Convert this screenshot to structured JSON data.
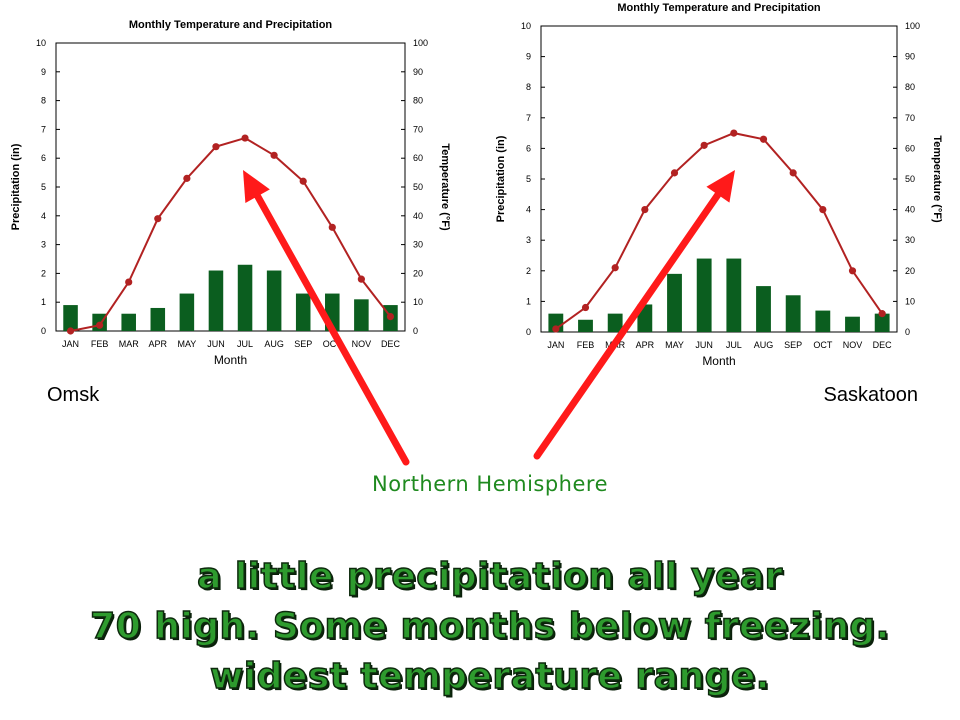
{
  "chart_data": [
    {
      "type": "bar",
      "title": "Monthly Temperature and Precipitation",
      "xlabel": "Month",
      "ylabel": "Precipitation (in)",
      "ylabel_right": "Temperature (°F)",
      "categories": [
        "JAN",
        "FEB",
        "MAR",
        "APR",
        "MAY",
        "JUN",
        "JUL",
        "AUG",
        "SEP",
        "OCT",
        "NOV",
        "DEC"
      ],
      "ylim": [
        0,
        10
      ],
      "y2lim": [
        0,
        100
      ],
      "yticks": [
        "0",
        "1",
        "2",
        "3",
        "4",
        "5",
        "6",
        "7",
        "8",
        "9",
        "10"
      ],
      "y2ticks": [
        "0",
        "10",
        "20",
        "30",
        "40",
        "50",
        "60",
        "70",
        "80",
        "90",
        "100"
      ],
      "series": [
        {
          "name": "Precipitation",
          "type": "bar",
          "axis": "left",
          "values": [
            0.9,
            0.6,
            0.6,
            0.8,
            1.3,
            2.1,
            2.3,
            2.1,
            1.3,
            1.3,
            1.1,
            0.9
          ]
        },
        {
          "name": "Temperature",
          "type": "line",
          "axis": "right",
          "values": [
            0,
            2,
            17,
            39,
            53,
            64,
            67,
            61,
            52,
            36,
            18,
            5
          ]
        }
      ],
      "colors": {
        "bars": "#0b5e1f",
        "line": "#b22222"
      },
      "grid": false
    },
    {
      "type": "bar",
      "title": "Monthly Temperature and Precipitation",
      "xlabel": "Month",
      "ylabel": "Precipitation (in)",
      "ylabel_right": "Temperature (°F)",
      "categories": [
        "JAN",
        "FEB",
        "MAR",
        "APR",
        "MAY",
        "JUN",
        "JUL",
        "AUG",
        "SEP",
        "OCT",
        "NOV",
        "DEC"
      ],
      "ylim": [
        0,
        10
      ],
      "y2lim": [
        0,
        100
      ],
      "yticks": [
        "0",
        "1",
        "2",
        "3",
        "4",
        "5",
        "6",
        "7",
        "8",
        "9",
        "10"
      ],
      "y2ticks": [
        "0",
        "10",
        "20",
        "30",
        "40",
        "50",
        "60",
        "70",
        "80",
        "90",
        "100"
      ],
      "series": [
        {
          "name": "Precipitation",
          "type": "bar",
          "axis": "left",
          "values": [
            0.6,
            0.4,
            0.6,
            0.9,
            1.9,
            2.4,
            2.4,
            1.5,
            1.2,
            0.7,
            0.5,
            0.6
          ]
        },
        {
          "name": "Temperature",
          "type": "line",
          "axis": "right",
          "values": [
            1,
            8,
            21,
            40,
            52,
            61,
            65,
            63,
            52,
            40,
            20,
            6
          ]
        }
      ],
      "colors": {
        "bars": "#0b5e1f",
        "line": "#b22222"
      },
      "grid": false
    }
  ],
  "labels": {
    "city_left": "Omsk",
    "city_right": "Saskatoon",
    "note": "Northern Hemisphere"
  },
  "captions": [
    "a little precipitation all year",
    "70 high.  Some months below freezing.",
    "widest temperature range."
  ],
  "arrow_color": "#ff1a1a"
}
